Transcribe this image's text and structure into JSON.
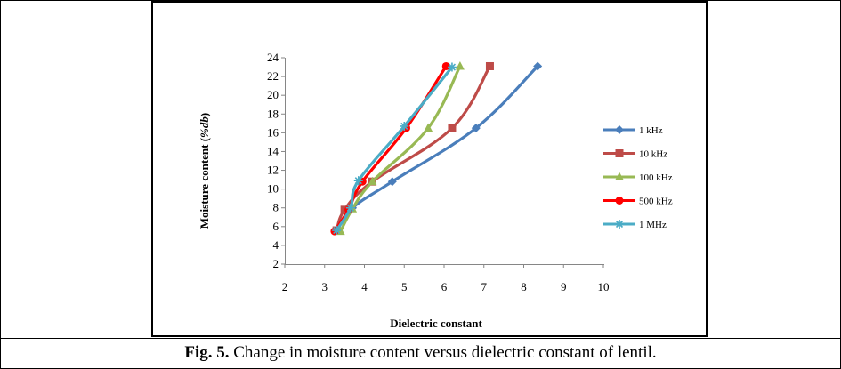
{
  "caption": {
    "label": "Fig. 5.",
    "text": "Change in moisture content versus dielectric constant of lentil."
  },
  "chart_data": {
    "type": "line",
    "title": "",
    "xlabel": "Dielectric constant",
    "ylabel_prefix": "Moisture content (",
    "ylabel_unit": "%db",
    "ylabel_suffix": ")",
    "xlim": [
      2,
      10
    ],
    "ylim": [
      2,
      24
    ],
    "xticks": [
      "2",
      "3",
      "4",
      "5",
      "6",
      "7",
      "8",
      "9",
      "10"
    ],
    "yticks": [
      "2",
      "4",
      "6",
      "8",
      "10",
      "12",
      "14",
      "16",
      "18",
      "20",
      "22",
      "24"
    ],
    "grid": false,
    "legend_position": "right",
    "series": [
      {
        "name": "1 kHz",
        "color": "#4a7ebb",
        "marker": "diamond",
        "x": [
          3.3,
          3.7,
          4.7,
          6.8,
          8.35
        ],
        "y": [
          5.6,
          8.0,
          10.8,
          16.5,
          23.1
        ]
      },
      {
        "name": "10 kHz",
        "color": "#be4b48",
        "marker": "square",
        "x": [
          3.3,
          3.5,
          4.2,
          6.2,
          7.15
        ],
        "y": [
          5.6,
          7.8,
          10.8,
          16.5,
          23.1
        ]
      },
      {
        "name": "100 kHz",
        "color": "#98b954",
        "marker": "triangle",
        "x": [
          3.4,
          3.7,
          4.2,
          5.6,
          6.4
        ],
        "y": [
          5.5,
          7.9,
          10.8,
          16.5,
          23.1
        ]
      },
      {
        "name": "500 kHz",
        "color": "#ff0000",
        "marker": "circle",
        "x": [
          3.25,
          3.6,
          3.95,
          5.05,
          6.05
        ],
        "y": [
          5.5,
          7.8,
          10.8,
          16.5,
          23.1
        ]
      },
      {
        "name": "1 MHz",
        "color": "#4bacc6",
        "marker": "star",
        "x": [
          3.3,
          3.65,
          3.85,
          5.0,
          6.2
        ],
        "y": [
          5.6,
          8.0,
          10.9,
          16.7,
          23.0
        ]
      }
    ]
  }
}
